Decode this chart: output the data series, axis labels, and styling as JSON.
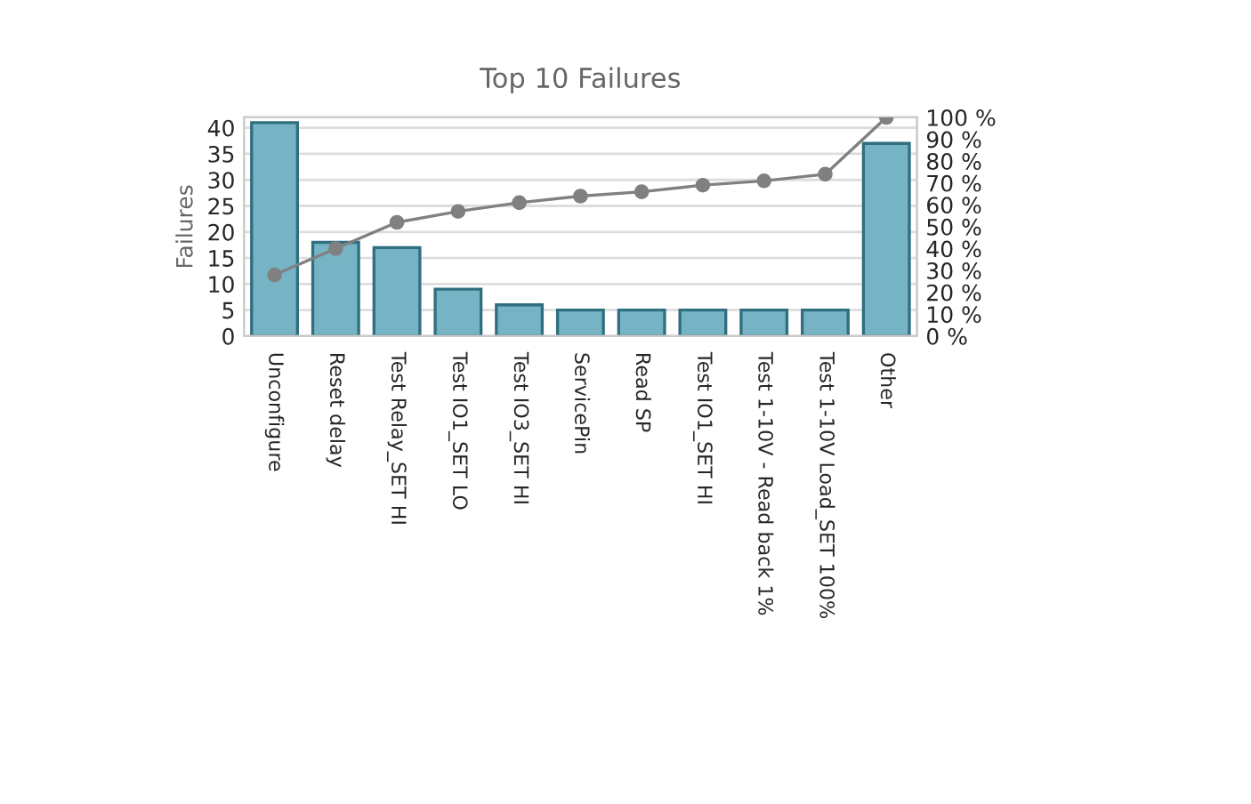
{
  "chart_data": {
    "type": "bar",
    "title": "Top 10 Failures",
    "ylabel": "Failures",
    "categories": [
      "Unconfigure",
      "Reset delay",
      "Test Relay_SET HI",
      "Test IO1_SET LO",
      "Test IO3_SET HI",
      "ServicePin",
      "Read SP",
      "Test IO1_SET HI",
      "Test 1-10V - Read back 1%",
      "Test 1-10V Load_SET 100%",
      "Other"
    ],
    "series": [
      {
        "color": "#76b4c5",
        "values": [
          41,
          18,
          17,
          9,
          6,
          5,
          5,
          5,
          5,
          5,
          37
        ]
      },
      {
        "type": "line",
        "axis": "y2",
        "color": "#808080",
        "marker": "circle",
        "values": [
          28,
          40,
          52,
          57,
          61,
          64,
          66,
          69,
          71,
          74,
          100
        ]
      }
    ],
    "ylim": [
      0,
      42
    ],
    "yticks": [
      0,
      5,
      10,
      15,
      20,
      25,
      30,
      35,
      40
    ],
    "y2lim": [
      0,
      100
    ],
    "y2ticks": [
      {
        "value": 0,
        "label": "0 %"
      },
      {
        "value": 10,
        "label": "10 %"
      },
      {
        "value": 20,
        "label": "20 %"
      },
      {
        "value": 30,
        "label": "30 %"
      },
      {
        "value": 40,
        "label": "40 %"
      },
      {
        "value": 50,
        "label": "50 %"
      },
      {
        "value": 60,
        "label": "60 %"
      },
      {
        "value": 70,
        "label": "70 %"
      },
      {
        "value": 80,
        "label": "80 %"
      },
      {
        "value": 90,
        "label": "90 %"
      },
      {
        "value": 100,
        "label": "100 %"
      }
    ],
    "grid": "y"
  }
}
